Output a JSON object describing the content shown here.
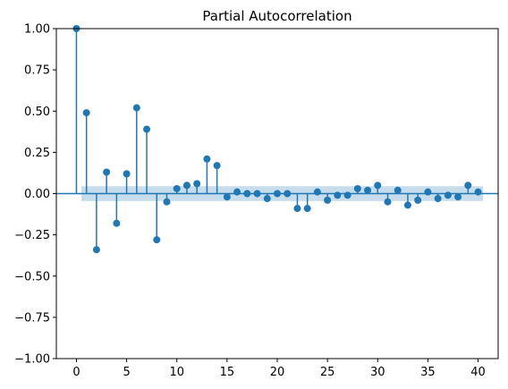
{
  "chart_data": {
    "type": "stem",
    "title": "Partial Autocorrelation",
    "xlabel": "",
    "ylabel": "",
    "xlim": [
      -2,
      42
    ],
    "ylim": [
      -1.0,
      1.0
    ],
    "xticks": [
      0,
      5,
      10,
      15,
      20,
      25,
      30,
      35,
      40
    ],
    "xtick_labels": [
      "0",
      "5",
      "10",
      "15",
      "20",
      "25",
      "30",
      "35",
      "40"
    ],
    "yticks": [
      1.0,
      0.75,
      0.5,
      0.25,
      0.0,
      -0.25,
      -0.5,
      -0.75,
      -1.0
    ],
    "ytick_labels": [
      "1.00",
      "0.75",
      "0.50",
      "0.25",
      "0.00",
      "−0.25",
      "−0.50",
      "−0.75",
      "−1.00"
    ],
    "confidence_band": {
      "lower": -0.045,
      "upper": 0.045,
      "x_start": 0.5,
      "x_end": 40.5
    },
    "grid": false,
    "lags": [
      0,
      1,
      2,
      3,
      4,
      5,
      6,
      7,
      8,
      9,
      10,
      11,
      12,
      13,
      14,
      15,
      16,
      17,
      18,
      19,
      20,
      21,
      22,
      23,
      24,
      25,
      26,
      27,
      28,
      29,
      30,
      31,
      32,
      33,
      34,
      35,
      36,
      37,
      38,
      39,
      40
    ],
    "values": [
      1.0,
      0.49,
      -0.34,
      0.13,
      -0.18,
      0.12,
      0.52,
      0.39,
      -0.28,
      -0.05,
      0.03,
      0.05,
      0.06,
      0.21,
      0.17,
      -0.02,
      0.01,
      0.0,
      0.0,
      -0.03,
      0.0,
      0.0,
      -0.09,
      -0.09,
      0.01,
      -0.04,
      -0.01,
      -0.01,
      0.03,
      0.02,
      0.05,
      -0.05,
      0.02,
      -0.07,
      -0.04,
      0.01,
      -0.03,
      -0.01,
      -0.02,
      0.05,
      0.01
    ]
  },
  "colors": {
    "series": "#1f77b4",
    "band": "#1f77b4",
    "axis": "#000000"
  }
}
